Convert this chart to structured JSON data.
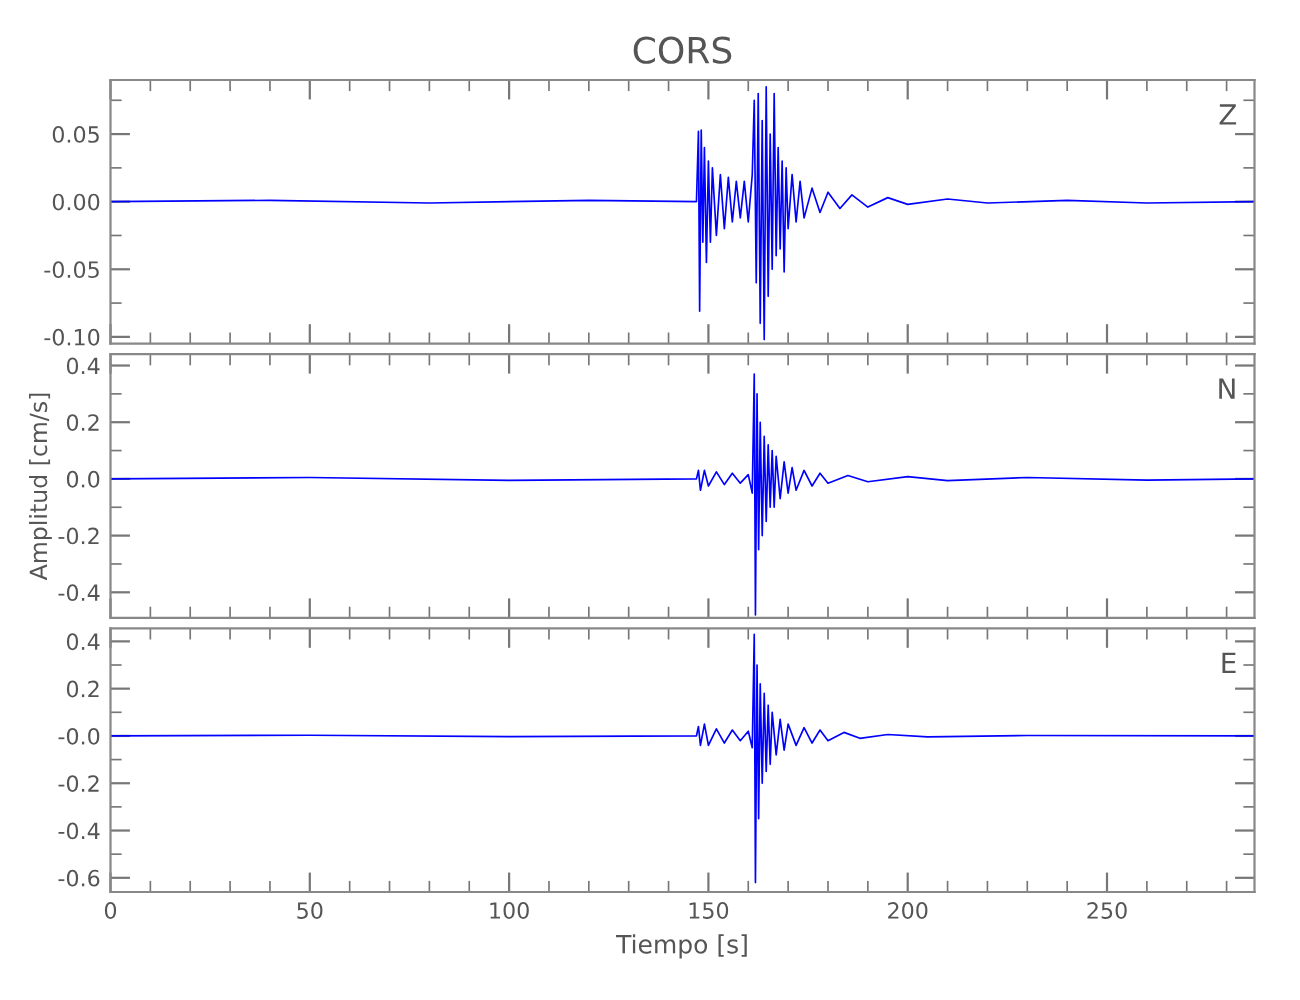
{
  "chart_data": [
    {
      "type": "line",
      "title": "CORS",
      "annotations": [
        "Z"
      ],
      "tick_labels": "y",
      "xlim": [
        0,
        287
      ],
      "xticks": [
        0,
        50,
        100,
        150,
        200,
        250
      ],
      "ylim": [
        -0.105,
        0.09
      ],
      "yticks": [
        {
          "value": 0.05,
          "label": "0.05"
        },
        {
          "value": 0,
          "label": "0.00"
        },
        {
          "value": -0.05,
          "label": "-0.05"
        },
        {
          "value": -0.1,
          "label": "-0.10"
        }
      ],
      "series": [
        {
          "color": "#0000ff",
          "x": [
            0,
            40,
            80,
            120,
            147,
            147.5,
            147.8,
            148.2,
            148.6,
            149,
            149.5,
            150,
            150.5,
            151,
            152,
            153,
            154,
            155,
            156,
            157,
            158,
            159,
            160,
            161,
            161.5,
            162,
            162.5,
            163,
            163.5,
            164,
            164.5,
            165,
            165.5,
            166,
            166.5,
            167,
            167.5,
            168,
            168.5,
            169,
            169.5,
            170,
            171,
            172,
            173,
            174,
            176,
            178,
            180,
            183,
            186,
            190,
            195,
            200,
            210,
            220,
            240,
            260,
            287
          ],
          "values": [
            0,
            0.001,
            -0.001,
            0.001,
            0,
            0.052,
            -0.081,
            0.053,
            -0.03,
            0.04,
            -0.045,
            0.03,
            -0.03,
            0.025,
            -0.025,
            0.02,
            -0.02,
            0.018,
            -0.015,
            0.015,
            -0.012,
            0.015,
            -0.015,
            0.02,
            0.075,
            -0.06,
            0.08,
            -0.09,
            0.06,
            -0.102,
            0.085,
            -0.07,
            0.05,
            -0.05,
            0.08,
            -0.04,
            0.04,
            -0.035,
            0.03,
            -0.052,
            0.025,
            -0.02,
            0.02,
            -0.015,
            0.015,
            -0.012,
            0.01,
            -0.008,
            0.007,
            -0.005,
            0.005,
            -0.004,
            0.003,
            -0.002,
            0.002,
            -0.001,
            0.001,
            -0.001,
            0
          ]
        }
      ]
    },
    {
      "type": "line",
      "ylabel": "Amplitud [cm/s]",
      "annotations": [
        "N"
      ],
      "tick_labels": "y",
      "xlim": [
        0,
        287
      ],
      "xticks": [
        0,
        50,
        100,
        150,
        200,
        250
      ],
      "ylim": [
        -0.49,
        0.44
      ],
      "yticks": [
        {
          "value": 0.4,
          "label": "0.4"
        },
        {
          "value": 0.2,
          "label": "0.2"
        },
        {
          "value": 0,
          "label": "0.0"
        },
        {
          "value": -0.2,
          "label": "-0.2"
        },
        {
          "value": -0.4,
          "label": "-0.4"
        }
      ],
      "series": [
        {
          "color": "#0000ff",
          "x": [
            0,
            50,
            100,
            147,
            147.5,
            148,
            149,
            150,
            152,
            154,
            156,
            158,
            160,
            161,
            161.5,
            161.8,
            162.2,
            162.6,
            163,
            163.5,
            164,
            164.5,
            165,
            165.5,
            166,
            166.5,
            167,
            168,
            169,
            170,
            171,
            172,
            174,
            176,
            178,
            180,
            185,
            190,
            200,
            210,
            230,
            260,
            287
          ],
          "values": [
            0,
            0.005,
            -0.005,
            0,
            0.03,
            -0.04,
            0.03,
            -0.025,
            0.025,
            -0.02,
            0.02,
            -0.015,
            0.015,
            -0.05,
            0.37,
            -0.48,
            0.3,
            -0.25,
            0.2,
            -0.2,
            0.15,
            -0.15,
            0.12,
            -0.1,
            0.1,
            -0.1,
            0.08,
            -0.07,
            0.06,
            -0.05,
            0.04,
            -0.04,
            0.03,
            -0.025,
            0.02,
            -0.015,
            0.012,
            -0.01,
            0.008,
            -0.006,
            0.005,
            -0.004,
            0
          ]
        }
      ]
    },
    {
      "type": "line",
      "xlabel": "Tiempo [s]",
      "annotations": [
        "E"
      ],
      "xlim": [
        0,
        287
      ],
      "xticks": [
        0,
        50,
        100,
        150,
        200,
        250
      ],
      "ylim": [
        -0.66,
        0.455
      ],
      "yticks": [
        {
          "value": 0.4,
          "label": "0.4"
        },
        {
          "value": 0.2,
          "label": "0.2"
        },
        {
          "value": 0,
          "label": "-0.0"
        },
        {
          "value": -0.2,
          "label": "-0.2"
        },
        {
          "value": -0.4,
          "label": "-0.4"
        },
        {
          "value": -0.6,
          "label": "-0.6"
        }
      ],
      "series": [
        {
          "color": "#0000ff",
          "x": [
            0,
            50,
            100,
            147,
            147.5,
            148,
            149,
            150,
            152,
            154,
            156,
            158,
            160,
            161,
            161.5,
            161.8,
            162.2,
            162.6,
            163,
            163.5,
            164,
            164.5,
            165,
            165.5,
            166,
            167,
            168,
            169,
            170,
            172,
            174,
            176,
            178,
            180,
            184,
            188,
            195,
            205,
            230,
            287
          ],
          "values": [
            0,
            0.003,
            -0.003,
            0,
            0.04,
            -0.04,
            0.05,
            -0.04,
            0.03,
            -0.03,
            0.025,
            -0.02,
            0.02,
            -0.05,
            0.43,
            -0.62,
            0.3,
            -0.35,
            0.22,
            -0.2,
            0.18,
            -0.15,
            0.13,
            -0.12,
            0.1,
            -0.08,
            0.07,
            -0.06,
            0.05,
            -0.04,
            0.035,
            -0.03,
            0.025,
            -0.02,
            0.015,
            -0.01,
            0.006,
            -0.004,
            0.002,
            0
          ]
        }
      ]
    }
  ]
}
